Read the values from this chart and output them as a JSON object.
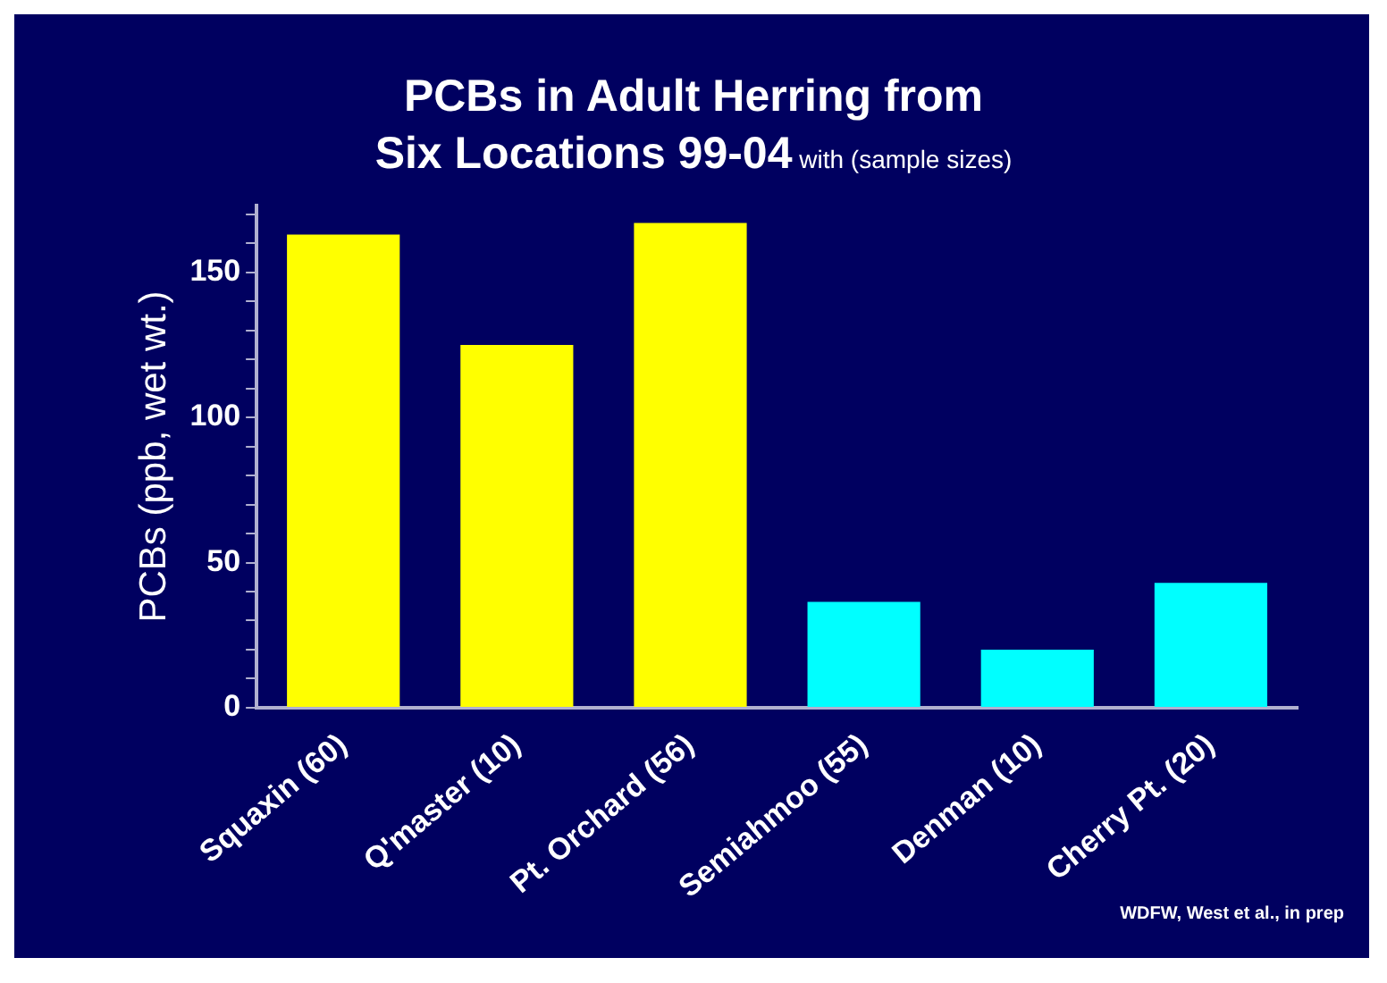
{
  "chart_data": {
    "type": "bar",
    "title": "PCBs in Adult Herring from\nSix Locations 99-04",
    "subtitle": "with (sample sizes)",
    "ylabel": "PCBs (ppb, wet wt.)",
    "categories": [
      "Squaxin (60)",
      "Q'master (10)",
      "Pt. Orchard (56)",
      "Semiahmoo (55)",
      "Denman (10)",
      "Cherry Pt. (20)"
    ],
    "values": [
      163,
      125,
      167,
      36.5,
      20,
      43
    ],
    "colors": [
      "#ffff00",
      "#ffff00",
      "#ffff00",
      "#00ffff",
      "#00ffff",
      "#00ffff"
    ],
    "ylim": [
      0,
      173
    ],
    "yticks": [
      0,
      {
        "value": 10,
        "label": null
      },
      {
        "value": 20,
        "label": null
      },
      {
        "value": 30,
        "label": null
      },
      {
        "value": 40,
        "label": null
      },
      50,
      {
        "value": 60,
        "label": null
      },
      {
        "value": 70,
        "label": null
      },
      {
        "value": 80,
        "label": null
      },
      {
        "value": 90,
        "label": null
      },
      100,
      {
        "value": 110,
        "label": null
      },
      {
        "value": 120,
        "label": null
      },
      {
        "value": 130,
        "label": null
      },
      {
        "value": 140,
        "label": null
      },
      150,
      {
        "value": 160,
        "label": null
      },
      {
        "value": 170,
        "label": null
      }
    ],
    "grid": false,
    "legend": false,
    "annotations": [
      "WDFW, West et al., in prep"
    ]
  }
}
